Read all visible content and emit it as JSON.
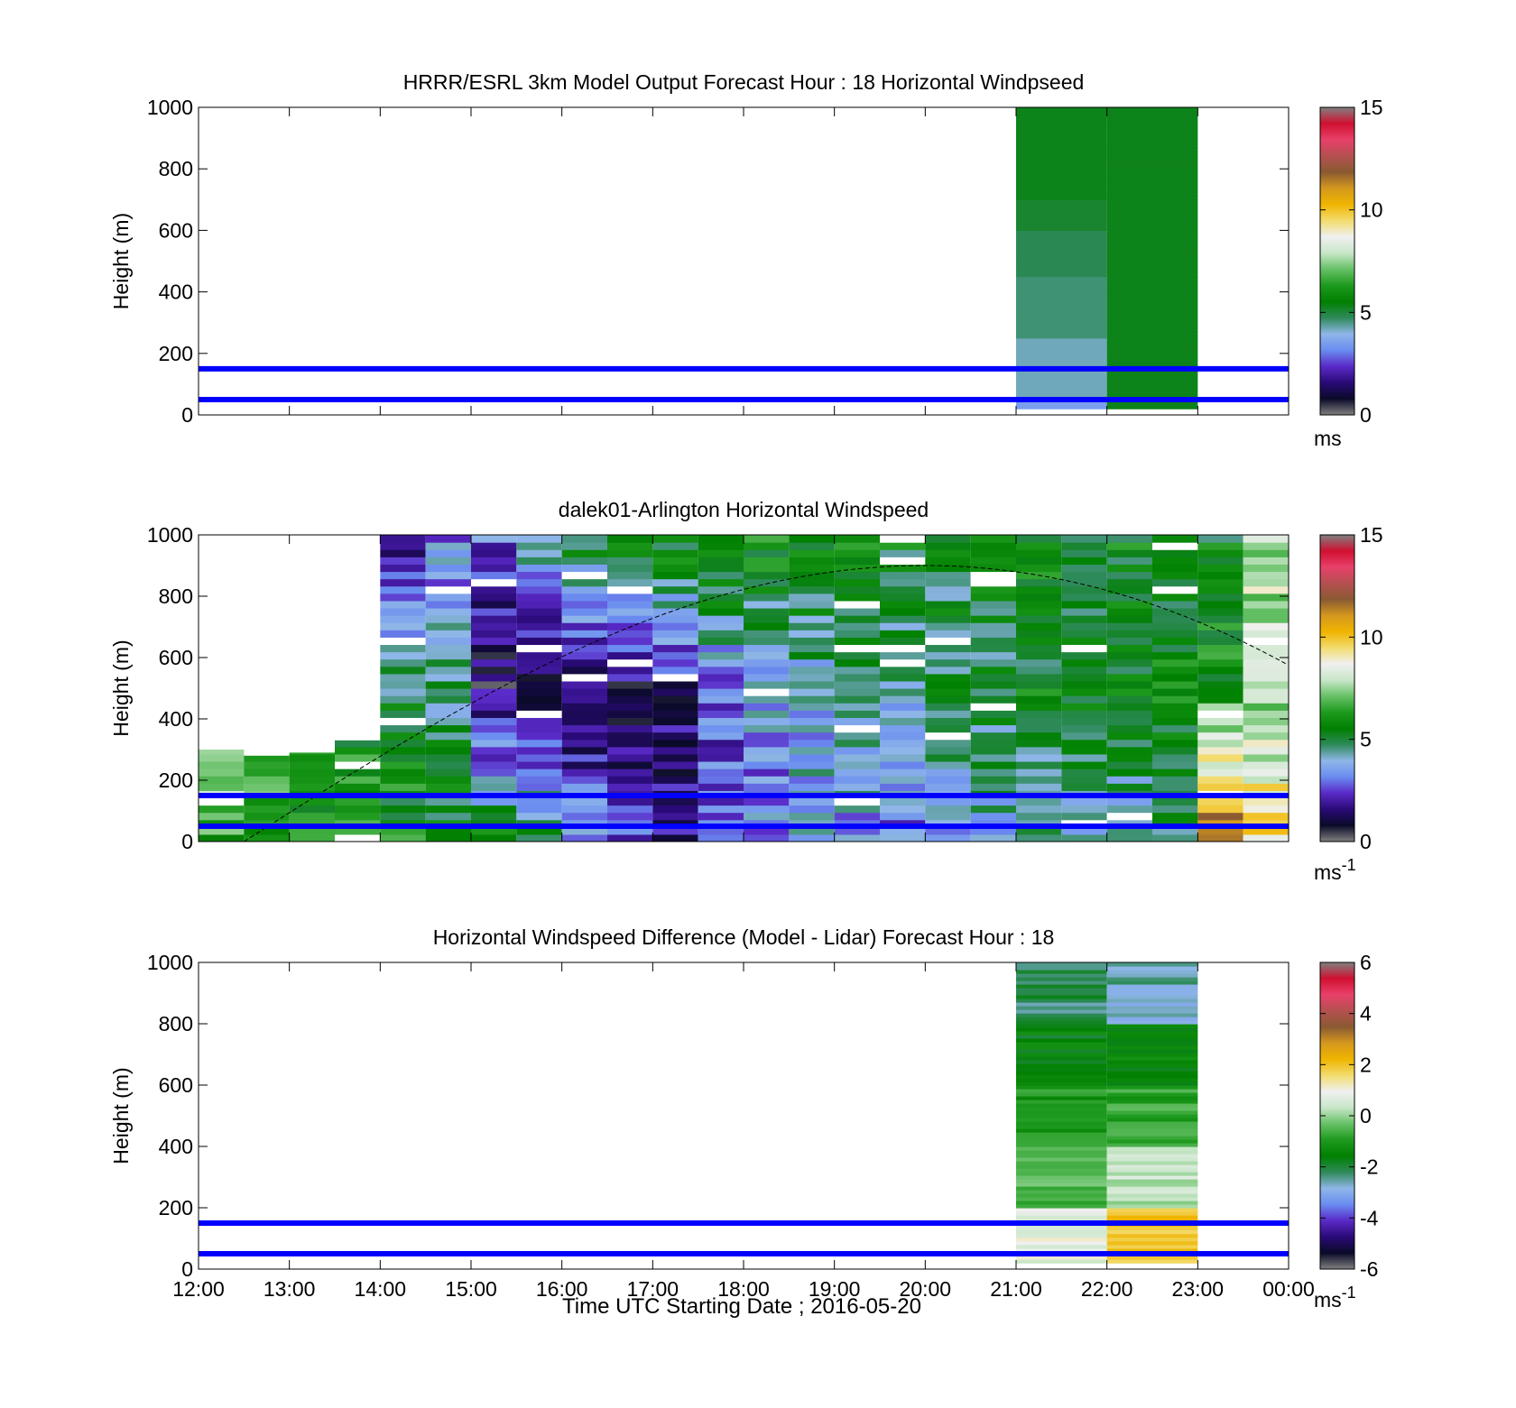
{
  "figure": {
    "xlabel": "Time UTC  Starting Date ; 2016-05-20",
    "xticks": [
      "12:00",
      "13:00",
      "14:00",
      "15:00",
      "16:00",
      "17:00",
      "18:00",
      "19:00",
      "20:00",
      "21:00",
      "22:00",
      "23:00",
      "00:00"
    ]
  },
  "colors": {
    "reference_lines": "#0000ff",
    "boundary_layer_curve": "#000000",
    "colormap": [
      "#808080",
      "#0a0a28",
      "#2a0a78",
      "#5a2ac8",
      "#6a8cf0",
      "#8fb6e8",
      "#2e8a5a",
      "#008000",
      "#1e9a1e",
      "#66c066",
      "#c8e6c8",
      "#f0f0f0",
      "#f2dc6e",
      "#f0b400",
      "#d4981e",
      "#8a5a32",
      "#b45050",
      "#e8406a",
      "#d01030",
      "#808080"
    ]
  },
  "chart_data": [
    {
      "type": "heatmap",
      "title": "HRRR/ESRL 3km Model Output   Forecast Hour : 18 Horizontal Windpseed",
      "ylabel": "Height (m)",
      "xlim": [
        "12:00",
        "00:00"
      ],
      "ylim": [
        0,
        1000
      ],
      "yticks": [
        0,
        200,
        400,
        600,
        800,
        1000
      ],
      "show_xtick_labels": false,
      "reference_lines_m": [
        150,
        50
      ],
      "colorbar": {
        "min": 0,
        "max": 15,
        "ticks": [
          0,
          5,
          10,
          15
        ],
        "unit_label": "ms",
        "unit_sup": ""
      },
      "columns": [
        {
          "start": "21:00",
          "end": "22:00",
          "bins": [
            {
              "from": 20,
              "to": 50,
              "value": 3.5
            },
            {
              "from": 50,
              "to": 250,
              "value": 4.2
            },
            {
              "from": 250,
              "to": 450,
              "value": 4.6
            },
            {
              "from": 450,
              "to": 600,
              "value": 4.8
            },
            {
              "from": 600,
              "to": 700,
              "value": 5.1
            },
            {
              "from": 700,
              "to": 1000,
              "value": 5.3
            }
          ]
        },
        {
          "start": "22:00",
          "end": "23:00",
          "bins": [
            {
              "from": 20,
              "to": 1000,
              "value": 5.3
            }
          ]
        }
      ]
    },
    {
      "type": "heatmap",
      "title": "dalek01-Arlington  Horizontal Windspeed",
      "ylabel": "Height (m)",
      "xlim": [
        "12:00",
        "00:00"
      ],
      "ylim": [
        0,
        1000
      ],
      "yticks": [
        0,
        200,
        400,
        600,
        800,
        1000
      ],
      "show_xtick_labels": false,
      "reference_lines_m": [
        150,
        50
      ],
      "colorbar": {
        "min": 0,
        "max": 15,
        "ticks": [
          0,
          5,
          10,
          15
        ],
        "unit_label": "ms",
        "unit_sup": "-1"
      },
      "boundary_layer_curve": {
        "times": [
          "12:30",
          "20:00",
          "00:00"
        ],
        "heights_m": [
          0,
          900,
          575
        ]
      },
      "columns_approx": [
        {
          "time": "12:15",
          "top_m": 300,
          "low_m": 6.5,
          "high_m": 9.5,
          "top_value": 9.5
        },
        {
          "time": "12:45",
          "top_m": 280,
          "low_m": 6.5,
          "high_m": 6.5,
          "top_value": 7.5
        },
        {
          "time": "13:15",
          "top_m": 290,
          "low_m": 6.0,
          "high_m": 6.0,
          "top_value": 6.5
        },
        {
          "time": "13:45",
          "top_m": 330,
          "low_m": 6.5,
          "high_m": 5.5,
          "top_value": 4.0
        },
        {
          "time": "14:15",
          "top_m": 1000,
          "low_m": 6.0,
          "high_m": 5.0,
          "top_value": 1.8
        },
        {
          "time": "14:45",
          "top_m": 1000,
          "low_m": 5.5,
          "high_m": 4.5,
          "top_value": 3.0
        },
        {
          "time": "15:15",
          "top_m": 1000,
          "low_m": 5.5,
          "high_m": 1.2,
          "top_value": 3.0
        },
        {
          "time": "15:45",
          "top_m": 1000,
          "low_m": 5.0,
          "high_m": 1.0,
          "top_value": 4.5
        },
        {
          "time": "16:15",
          "top_m": 1000,
          "low_m": 3.5,
          "high_m": 1.0,
          "top_value": 5.5
        },
        {
          "time": "16:45",
          "top_m": 1000,
          "low_m": 2.5,
          "high_m": 1.2,
          "top_value": 6.0
        },
        {
          "time": "17:15",
          "top_m": 1000,
          "low_m": 2.0,
          "high_m": 1.5,
          "top_value": 6.0
        },
        {
          "time": "17:45",
          "top_m": 1000,
          "low_m": 2.5,
          "high_m": 3.0,
          "top_value": 6.5
        },
        {
          "time": "18:15",
          "top_m": 1000,
          "low_m": 3.0,
          "high_m": 3.5,
          "top_value": 6.0
        },
        {
          "time": "18:45",
          "top_m": 1000,
          "low_m": 3.5,
          "high_m": 4.0,
          "top_value": 6.0
        },
        {
          "time": "19:15",
          "top_m": 1000,
          "low_m": 3.5,
          "high_m": 4.5,
          "top_value": 5.5
        },
        {
          "time": "19:45",
          "top_m": 1000,
          "low_m": 3.0,
          "high_m": 4.5,
          "top_value": 5.5
        },
        {
          "time": "20:15",
          "top_m": 1000,
          "low_m": 3.5,
          "high_m": 5.0,
          "top_value": 5.0
        },
        {
          "time": "20:45",
          "top_m": 1000,
          "low_m": 4.0,
          "high_m": 5.0,
          "top_value": 5.5
        },
        {
          "time": "21:15",
          "top_m": 1000,
          "low_m": 4.0,
          "high_m": 5.5,
          "top_value": 5.5
        },
        {
          "time": "21:45",
          "top_m": 1000,
          "low_m": 4.0,
          "high_m": 5.5,
          "top_value": 5.5
        },
        {
          "time": "22:15",
          "top_m": 1000,
          "low_m": 4.0,
          "high_m": 5.5,
          "top_value": 5.5
        },
        {
          "time": "22:45",
          "top_m": 1000,
          "low_m": 5.0,
          "high_m": 5.5,
          "top_value": 5.5
        },
        {
          "time": "23:15",
          "top_m": 1000,
          "low_m": 12.0,
          "high_m": 6.0,
          "top_value": 5.5
        },
        {
          "time": "23:45",
          "top_m": 1000,
          "low_m": 9.5,
          "high_m": 7.5,
          "top_value": 8.0
        }
      ]
    },
    {
      "type": "heatmap",
      "title": "Horizontal Windspeed Difference (Model - Lidar) Forecast Hour : 18",
      "ylabel": "Height (m)",
      "xlim": [
        "12:00",
        "00:00"
      ],
      "ylim": [
        0,
        1000
      ],
      "yticks": [
        0,
        200,
        400,
        600,
        800,
        1000
      ],
      "show_xtick_labels": true,
      "reference_lines_m": [
        150,
        50
      ],
      "colorbar": {
        "min": -6,
        "max": 6,
        "ticks": [
          -6,
          -4,
          -2,
          0,
          2,
          4,
          6
        ],
        "unit_label": "ms",
        "unit_sup": "-1"
      },
      "columns": [
        {
          "start": "21:00",
          "end": "22:00",
          "bins": [
            {
              "from": 20,
              "to": 200,
              "value": 0.8
            },
            {
              "from": 200,
              "to": 400,
              "value": -0.5
            },
            {
              "from": 400,
              "to": 600,
              "value": -1.0
            },
            {
              "from": 600,
              "to": 800,
              "value": -1.6
            },
            {
              "from": 800,
              "to": 1000,
              "value": -2.2
            }
          ]
        },
        {
          "start": "22:00",
          "end": "23:00",
          "bins": [
            {
              "from": 20,
              "to": 200,
              "value": 1.8
            },
            {
              "from": 200,
              "to": 400,
              "value": 0.3
            },
            {
              "from": 400,
              "to": 600,
              "value": -0.8
            },
            {
              "from": 600,
              "to": 800,
              "value": -1.6
            },
            {
              "from": 800,
              "to": 1000,
              "value": -2.6
            }
          ]
        }
      ]
    }
  ]
}
